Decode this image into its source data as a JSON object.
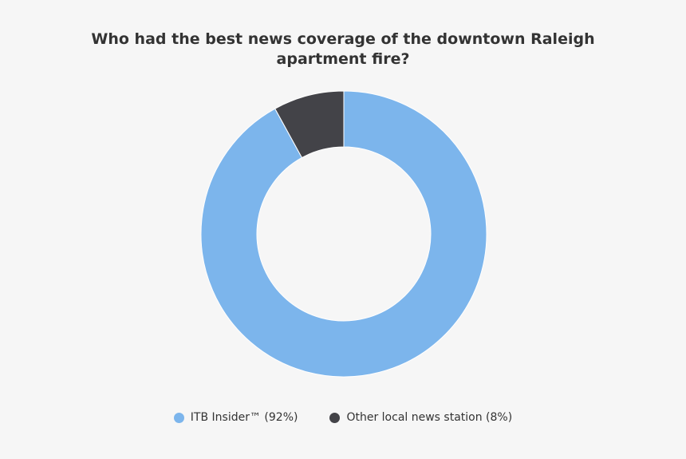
{
  "chart_data": {
    "type": "pie",
    "subtype": "donut",
    "title": "Who had the best news coverage of the downtown Raleigh apartment fire?",
    "slices": [
      {
        "label": "ITB Insider™",
        "value": 92,
        "color": "#7cb5ec"
      },
      {
        "label": "Other local news station",
        "value": 8,
        "color": "#434348"
      }
    ],
    "legend_labels": [
      "ITB Insider™ (92%)",
      "Other local news station (8%)"
    ],
    "legend_position": "bottom",
    "background": "#f6f6f6"
  }
}
